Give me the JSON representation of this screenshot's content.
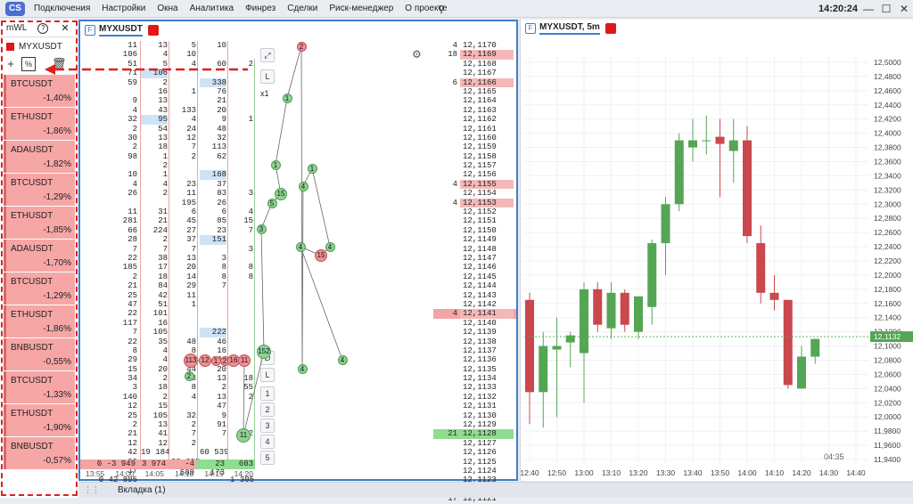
{
  "app": {
    "menu": [
      "Подключения",
      "Настройки",
      "Окна",
      "Аналитика",
      "Финрез",
      "Сделки",
      "Риск-менеджер",
      "О проекте"
    ],
    "clock": "14:20:24"
  },
  "watchlist": {
    "title": "mWL",
    "symbol": "MYXUSDT",
    "items": [
      {
        "name": "BTCUSDT",
        "change": "-1,40%"
      },
      {
        "name": "ETHUSDT",
        "change": "-1,86%"
      },
      {
        "name": "ADAUSDT",
        "change": "-1,82%"
      },
      {
        "name": "BTCUSDT",
        "change": "-1,29%"
      },
      {
        "name": "ETHUSDT",
        "change": "-1,85%"
      },
      {
        "name": "ADAUSDT",
        "change": "-1,70%"
      },
      {
        "name": "BTCUSDT",
        "change": "-1,29%"
      },
      {
        "name": "ETHUSDT",
        "change": "-1,86%"
      },
      {
        "name": "BNBUSDT",
        "change": "-0,55%"
      },
      {
        "name": "BTCUSDT",
        "change": "-1,33%"
      },
      {
        "name": "ETHUSDT",
        "change": "-1,90%"
      },
      {
        "name": "BNBUSDT",
        "change": "-0,57%"
      }
    ]
  },
  "dom": {
    "title": "MYXUSDT",
    "side_labels": {
      "l": "L",
      "x1": "x1",
      "d": "D",
      "l2": "L"
    },
    "side_nums": [
      "1",
      "2",
      "3",
      "4",
      "5"
    ],
    "col1": [
      "11",
      "106",
      "51",
      "71",
      "59",
      "",
      "9",
      "4",
      "32",
      "2",
      "30",
      "2",
      "98",
      "",
      "10",
      "4",
      "26",
      "",
      "11",
      "281",
      "66",
      "28",
      "7",
      "22",
      "185",
      "2",
      "21",
      "25",
      "47",
      "22",
      "117",
      "7",
      "22",
      "8",
      "29",
      "15",
      "34",
      "3",
      "140",
      "12",
      "25",
      "2",
      "21",
      "12",
      "42",
      "99",
      "17",
      "0 42 805"
    ],
    "col2": [
      "13",
      "4",
      "5",
      "106",
      "2",
      "16",
      "13",
      "43",
      "95",
      "54",
      "13",
      "18",
      "1",
      "2",
      "1",
      "4",
      "2",
      "",
      "31",
      "21",
      "224",
      "2",
      "7",
      "38",
      "17",
      "18",
      "84",
      "42",
      "51",
      "101",
      "16",
      "105",
      "35",
      "4",
      "4",
      "20",
      "2",
      "18",
      "2",
      "15",
      "105",
      "13",
      "41",
      "12",
      "19 184"
    ],
    "col3": [
      "5",
      "10",
      "4",
      "",
      "",
      "1",
      "",
      "133",
      "4",
      "24",
      "12",
      "7",
      "2",
      "",
      "",
      "23",
      "11",
      "195",
      "6",
      "45",
      "27",
      "37",
      "7",
      "13",
      "20",
      "14",
      "29",
      "11",
      "1",
      "",
      "",
      "",
      "48",
      "8",
      "",
      "44",
      "13",
      "8",
      "4",
      "",
      "32",
      "2",
      "7",
      "2",
      "",
      "39 295"
    ],
    "col4": [
      "10",
      "",
      "60",
      "",
      "338",
      "76",
      "21",
      "20",
      "9",
      "48",
      "32",
      "113",
      "62",
      "",
      "168",
      "37",
      "83",
      "26",
      "6",
      "85",
      "23",
      "151",
      "",
      "3",
      "8",
      "8",
      "7",
      "",
      "",
      "",
      "",
      "222",
      "46",
      "16",
      "144",
      "20",
      "13",
      "2",
      "13",
      "47",
      "9",
      "91",
      "7",
      "",
      "60 539"
    ],
    "col5": [
      "",
      "",
      "2",
      "",
      "",
      "",
      "",
      "",
      "1",
      "",
      "",
      "",
      "",
      "",
      "",
      "",
      "3",
      "",
      "4",
      "15",
      "7",
      "",
      "3",
      "",
      "8",
      "8",
      "",
      "",
      "",
      "",
      "",
      "",
      "",
      "",
      "",
      "",
      "18",
      "55",
      "2",
      "",
      "",
      "",
      "2",
      "",
      "",
      "",
      "",
      "1 305"
    ],
    "bottom_row": [
      "0 -3 949",
      "3 974",
      "-4 589",
      "23 173",
      "603"
    ],
    "times": [
      "13:55",
      "14:00",
      "14:05",
      "14:10",
      "14:15",
      "14:20"
    ],
    "prices": [
      "12,1170",
      "12,1169",
      "12,1168",
      "12,1167",
      "12,1166",
      "12,1165",
      "12,1164",
      "12,1163",
      "12,1162",
      "12,1161",
      "12,1160",
      "12,1159",
      "12,1158",
      "12,1157",
      "12,1156",
      "12,1155",
      "12,1154",
      "12,1153",
      "12,1152",
      "12,1151",
      "12,1150",
      "12,1149",
      "12,1148",
      "12,1147",
      "12,1146",
      "12,1145",
      "12,1144",
      "12,1143",
      "12,1142",
      "12,1141",
      "12,1140",
      "12,1139",
      "12,1138",
      "12,1137",
      "12,1136",
      "12,1135",
      "12,1134",
      "12,1133",
      "12,1132",
      "12,1131",
      "12,1130",
      "12,1129",
      "12,1128",
      "12,1127",
      "12,1126",
      "12,1125",
      "12,1124",
      "12,1123",
      "12,1122",
      "12,1121"
    ],
    "price_vols": {
      "0": "4",
      "1": "18",
      "4": "6",
      "15": "4",
      "17": "4",
      "29": "4",
      "42": "21",
      "49": "17"
    },
    "price_highlight": {
      "1": "red",
      "4": "red",
      "15": "red",
      "17": "red",
      "29": "red",
      "42": "green"
    },
    "bubbles": [
      {
        "label": "2",
        "type": "r",
        "x": 336,
        "y": 50
      },
      {
        "label": "1",
        "type": "g",
        "x": 320,
        "y": 108
      },
      {
        "label": "1",
        "type": "g",
        "x": 307,
        "y": 183
      },
      {
        "label": "1",
        "type": "g",
        "x": 348,
        "y": 187
      },
      {
        "label": "4",
        "type": "g",
        "x": 338,
        "y": 207
      },
      {
        "label": "15",
        "type": "g",
        "x": 313,
        "y": 216
      },
      {
        "label": "5",
        "type": "g",
        "x": 303,
        "y": 226
      },
      {
        "label": "3",
        "type": "g",
        "x": 291,
        "y": 255
      },
      {
        "label": "4",
        "type": "g",
        "x": 335,
        "y": 275
      },
      {
        "label": "15",
        "type": "r",
        "x": 358,
        "y": 285
      },
      {
        "label": "4",
        "type": "g",
        "x": 368,
        "y": 275
      },
      {
        "label": "113",
        "type": "r",
        "x": 212,
        "y": 403
      },
      {
        "label": "12",
        "type": "r",
        "x": 228,
        "y": 403
      },
      {
        "label": "1",
        "type": "r",
        "x": 240,
        "y": 403
      },
      {
        "label": "2",
        "type": "r",
        "x": 250,
        "y": 403
      },
      {
        "label": "16",
        "type": "r",
        "x": 260,
        "y": 403
      },
      {
        "label": "11",
        "type": "r",
        "x": 272,
        "y": 403
      },
      {
        "label": "152",
        "type": "g",
        "x": 294,
        "y": 393
      },
      {
        "label": "4",
        "type": "g",
        "x": 337,
        "y": 412
      },
      {
        "label": "4",
        "type": "g",
        "x": 382,
        "y": 402
      },
      {
        "label": "2",
        "type": "g",
        "x": 210,
        "y": 420
      },
      {
        "label": "11",
        "type": "g",
        "x": 271,
        "y": 487
      }
    ]
  },
  "chart": {
    "title": "MYXUSDT, 5m",
    "y_ticks": [
      "12,5000",
      "12,4800",
      "12,4600",
      "12,4400",
      "12,4200",
      "12,4000",
      "12,3800",
      "12,3600",
      "12,3400",
      "12,3200",
      "12,3000",
      "12,2800",
      "12,2600",
      "12,2400",
      "12,2200",
      "12,2000",
      "12,1800",
      "12,1600",
      "12,1400",
      "12,1200",
      "12,1000",
      "12,0800",
      "12,0600",
      "12,0400",
      "12,0200",
      "12,0000",
      "11,9800",
      "11,9600",
      "11,9400"
    ],
    "x_ticks": [
      "12:40",
      "12:50",
      "13:00",
      "13:10",
      "13:20",
      "13:30",
      "13:40",
      "13:50",
      "14:00",
      "14:10",
      "14:20",
      "14:30",
      "14:40"
    ],
    "timer": "04:35",
    "last_price": "12,1132",
    "chart_data": {
      "type": "candlestick",
      "ylim": [
        11.935,
        12.51
      ],
      "candles": [
        {
          "o": 12.165,
          "h": 12.175,
          "l": 11.99,
          "c": 12.035,
          "bull": false
        },
        {
          "o": 12.035,
          "h": 12.12,
          "l": 11.985,
          "c": 12.1,
          "bull": true
        },
        {
          "o": 12.095,
          "h": 12.14,
          "l": 12.0,
          "c": 12.1,
          "bull": true
        },
        {
          "o": 12.105,
          "h": 12.12,
          "l": 12.07,
          "c": 12.115,
          "bull": true
        },
        {
          "o": 12.09,
          "h": 12.19,
          "l": 12.02,
          "c": 12.18,
          "bull": true
        },
        {
          "o": 12.18,
          "h": 12.19,
          "l": 12.12,
          "c": 12.13,
          "bull": false
        },
        {
          "o": 12.125,
          "h": 12.19,
          "l": 12.11,
          "c": 12.175,
          "bull": true
        },
        {
          "o": 12.175,
          "h": 12.18,
          "l": 12.12,
          "c": 12.13,
          "bull": false
        },
        {
          "o": 12.12,
          "h": 12.17,
          "l": 12.11,
          "c": 12.17,
          "bull": true
        },
        {
          "o": 12.155,
          "h": 12.25,
          "l": 12.13,
          "c": 12.245,
          "bull": true
        },
        {
          "o": 12.245,
          "h": 12.31,
          "l": 12.2,
          "c": 12.3,
          "bull": true
        },
        {
          "o": 12.3,
          "h": 12.4,
          "l": 12.29,
          "c": 12.39,
          "bull": true
        },
        {
          "o": 12.38,
          "h": 12.42,
          "l": 12.36,
          "c": 12.39,
          "bull": true
        },
        {
          "o": 12.39,
          "h": 12.425,
          "l": 12.37,
          "c": 12.39,
          "bull": true
        },
        {
          "o": 12.395,
          "h": 12.42,
          "l": 12.31,
          "c": 12.385,
          "bull": false
        },
        {
          "o": 12.375,
          "h": 12.42,
          "l": 12.33,
          "c": 12.39,
          "bull": true
        },
        {
          "o": 12.39,
          "h": 12.41,
          "l": 12.245,
          "c": 12.255,
          "bull": false
        },
        {
          "o": 12.245,
          "h": 12.27,
          "l": 12.16,
          "c": 12.175,
          "bull": false
        },
        {
          "o": 12.175,
          "h": 12.2,
          "l": 12.15,
          "c": 12.165,
          "bull": false
        },
        {
          "o": 12.165,
          "h": 12.165,
          "l": 12.04,
          "c": 12.045,
          "bull": false
        },
        {
          "o": 12.04,
          "h": 12.1,
          "l": 12.04,
          "c": 12.085,
          "bull": true
        },
        {
          "o": 12.085,
          "h": 12.11,
          "l": 12.075,
          "c": 12.11,
          "bull": true
        }
      ]
    }
  },
  "bottom": {
    "tab": "Вкладка (1)"
  }
}
